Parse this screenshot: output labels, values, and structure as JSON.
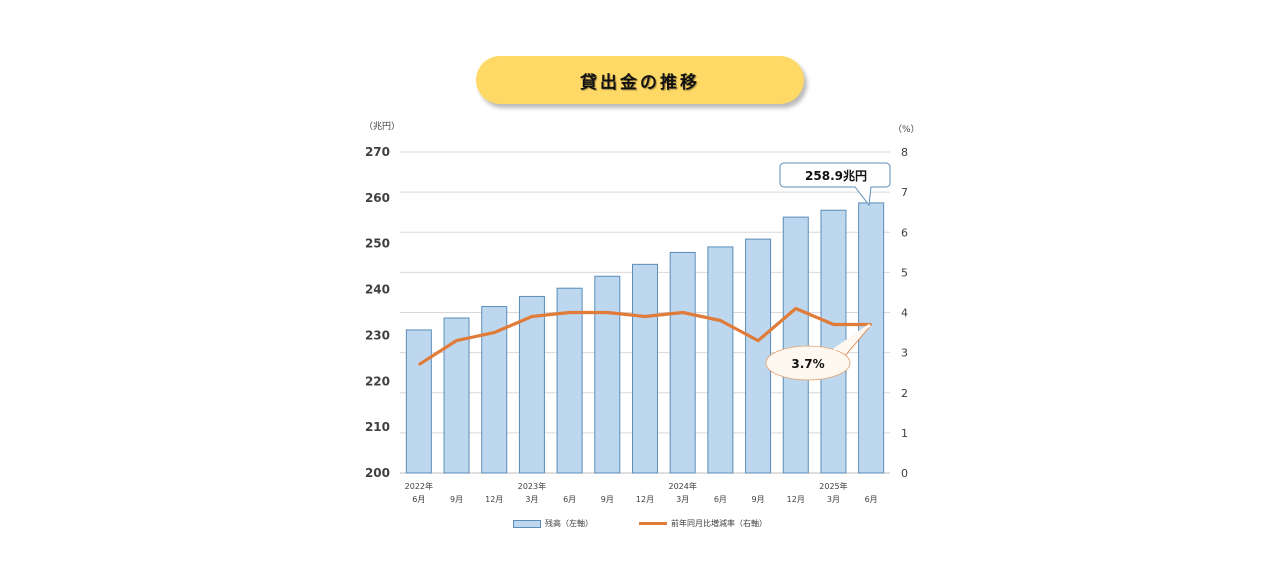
{
  "title": "貸出金の推移",
  "left_unit": "（兆円）",
  "right_unit": "（%）",
  "legend": {
    "bar_label": "残高（左軸）",
    "line_label": "前年同月比増減率（右軸）"
  },
  "callouts": {
    "bar_value": "258.9兆円",
    "line_value": "3.7%"
  },
  "colors": {
    "bar_fill": "#BDD7EE",
    "bar_border": "#5B8DB8",
    "line": "#E07B39",
    "title_pill": "#FFD966",
    "grid": "#D9D9D9"
  },
  "chart_data": {
    "type": "bar+line",
    "title": "貸出金の推移",
    "categories": [
      "2022年 6月",
      "9月",
      "12月",
      "2023年 3月",
      "6月",
      "9月",
      "12月",
      "2024年 3月",
      "6月",
      "9月",
      "12月",
      "2025年 3月",
      "6月"
    ],
    "x_tick_top": [
      "2022年",
      "",
      "",
      "2023年",
      "",
      "",
      "",
      "2024年",
      "",
      "",
      "",
      "2025年",
      ""
    ],
    "x_tick_bottom": [
      "6月",
      "9月",
      "12月",
      "3月",
      "6月",
      "9月",
      "12月",
      "3月",
      "6月",
      "9月",
      "12月",
      "3月",
      "6月"
    ],
    "series": [
      {
        "name": "残高（左軸）",
        "type": "bar",
        "axis": "left",
        "values": [
          231.2,
          233.8,
          236.3,
          238.5,
          240.3,
          242.9,
          245.5,
          248.1,
          249.3,
          251.0,
          255.8,
          257.3,
          258.9
        ]
      },
      {
        "name": "前年同月比増減率（右軸）",
        "type": "line",
        "axis": "right",
        "values": [
          2.7,
          3.3,
          3.5,
          3.9,
          4.0,
          4.0,
          3.9,
          4.0,
          3.8,
          3.3,
          4.1,
          3.7,
          3.7
        ]
      }
    ],
    "left_axis": {
      "label": "（兆円）",
      "ylim": [
        200,
        270
      ],
      "ticks": [
        200,
        210,
        220,
        230,
        240,
        250,
        260,
        270
      ]
    },
    "right_axis": {
      "label": "（%）",
      "ylim": [
        0,
        8
      ],
      "ticks": [
        0,
        1,
        2,
        3,
        4,
        5,
        6,
        7,
        8
      ]
    },
    "annotations": [
      {
        "target": "last bar",
        "text": "258.9兆円"
      },
      {
        "target": "last line point",
        "text": "3.7%"
      }
    ],
    "grid": true,
    "legend_position": "bottom"
  }
}
